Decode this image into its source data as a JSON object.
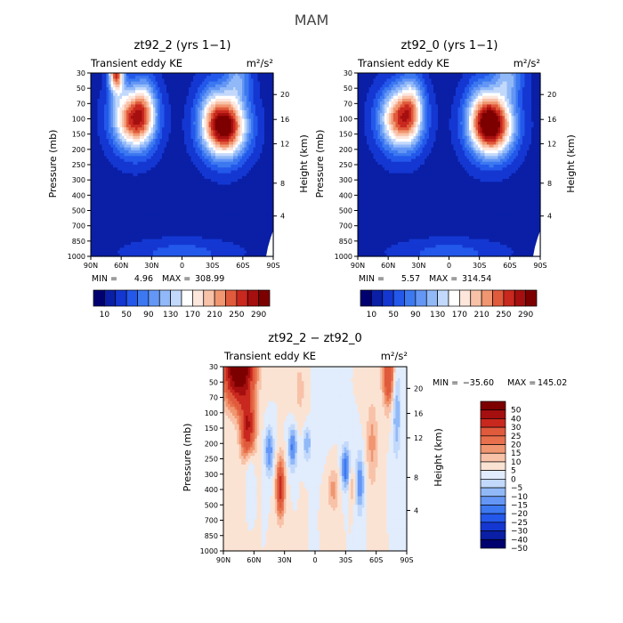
{
  "figure": {
    "title": "MAM"
  },
  "chart_data": [
    {
      "type": "heatmap",
      "title": "zt92_2 (yrs 1−1)",
      "subtitle": "Transient eddy KE",
      "units": "m²/s²",
      "ylabel": "Pressure (mb)",
      "y2label": "Height (km)",
      "x_ticks": [
        "90N",
        "60N",
        "30N",
        "0",
        "30S",
        "60S",
        "90S"
      ],
      "y_ticks": [
        "30",
        "50",
        "70",
        "100",
        "150",
        "200",
        "250",
        "300",
        "400",
        "500",
        "700",
        "850",
        "1000"
      ],
      "y2_ticks": [
        "4",
        "8",
        "12",
        "16",
        "20"
      ],
      "min_label": "MIN =",
      "min": "4.96",
      "max_label": "MAX =",
      "max": "308.99",
      "colorbar_levels": [
        10,
        30,
        50,
        70,
        90,
        110,
        130,
        150,
        170,
        190,
        210,
        230,
        250,
        270,
        290
      ],
      "colorbar_labels": [
        "10",
        "50",
        "90",
        "130",
        "170",
        "210",
        "250",
        "290"
      ],
      "colors": [
        "#00006e",
        "#0a1fa6",
        "#1437d2",
        "#2358eb",
        "#3c78f0",
        "#6496f5",
        "#91b9f8",
        "#c3d9fb",
        "#ffffff",
        "#fde6dc",
        "#f8c2a8",
        "#f09670",
        "#e05a3c",
        "#c8281e",
        "#a50f0f",
        "#7d0000"
      ],
      "features": [
        {
          "lat": 65,
          "lev": 0,
          "amp": 230,
          "wlat": 5,
          "wlev": 0.9
        },
        {
          "lat": 48,
          "lev": 3.0,
          "amp": 235,
          "wlat": 14,
          "wlev": 1.4
        },
        {
          "lat": 36,
          "lev": 2.2,
          "amp": 70,
          "wlat": 8,
          "wlev": 1.5
        },
        {
          "lat": -42,
          "lev": 3.5,
          "amp": 290,
          "wlat": 15,
          "wlev": 1.4
        },
        {
          "lat": -28,
          "lev": 2.2,
          "amp": 40,
          "wlat": 10,
          "wlev": 1.6
        },
        {
          "lat": -55,
          "lev": 0.3,
          "amp": 80,
          "wlat": 9,
          "wlev": 1.0
        },
        {
          "lat": 0,
          "lev": 11.8,
          "amp": 40,
          "wlat": 35,
          "wlev": 0.6
        }
      ],
      "base": 22
    },
    {
      "type": "heatmap",
      "title": "zt92_0 (yrs 1−1)",
      "subtitle": "Transient eddy KE",
      "units": "m²/s²",
      "ylabel": "Pressure (mb)",
      "y2label": "Height (km)",
      "x_ticks": [
        "90N",
        "60N",
        "30N",
        "0",
        "30S",
        "60S",
        "90S"
      ],
      "y_ticks": [
        "30",
        "50",
        "70",
        "100",
        "150",
        "200",
        "250",
        "300",
        "400",
        "500",
        "700",
        "850",
        "1000"
      ],
      "y2_ticks": [
        "4",
        "8",
        "12",
        "16",
        "20"
      ],
      "min_label": "MIN =",
      "min": "5.57",
      "max_label": "MAX =",
      "max": "314.54",
      "colorbar_levels": [
        10,
        30,
        50,
        70,
        90,
        110,
        130,
        150,
        170,
        190,
        210,
        230,
        250,
        270,
        290
      ],
      "colorbar_labels": [
        "10",
        "50",
        "90",
        "130",
        "170",
        "210",
        "250",
        "290"
      ],
      "colors": [
        "#00006e",
        "#0a1fa6",
        "#1437d2",
        "#2358eb",
        "#3c78f0",
        "#6496f5",
        "#91b9f8",
        "#c3d9fb",
        "#ffffff",
        "#fde6dc",
        "#f8c2a8",
        "#f09670",
        "#e05a3c",
        "#c8281e",
        "#a50f0f",
        "#7d0000"
      ],
      "features": [
        {
          "lat": 48,
          "lev": 3.0,
          "amp": 225,
          "wlat": 14,
          "wlev": 1.4
        },
        {
          "lat": 36,
          "lev": 2.0,
          "amp": 80,
          "wlat": 8,
          "wlev": 1.5
        },
        {
          "lat": -42,
          "lev": 3.4,
          "amp": 300,
          "wlat": 15,
          "wlev": 1.4
        },
        {
          "lat": -30,
          "lev": 2.2,
          "amp": 45,
          "wlat": 10,
          "wlev": 1.6
        },
        {
          "lat": -58,
          "lev": 0.2,
          "amp": 90,
          "wlat": 10,
          "wlev": 1.0
        },
        {
          "lat": 0,
          "lev": 11.8,
          "amp": 40,
          "wlat": 35,
          "wlev": 0.6
        }
      ],
      "base": 22
    },
    {
      "type": "heatmap",
      "title": "zt92_2 − zt92_0",
      "subtitle": "Transient eddy KE",
      "units": "m²/s²",
      "ylabel": "Pressure (mb)",
      "y2label": "Height (km)",
      "x_ticks": [
        "90N",
        "60N",
        "30N",
        "0",
        "30S",
        "60S",
        "90S"
      ],
      "y_ticks": [
        "30",
        "50",
        "70",
        "100",
        "150",
        "200",
        "250",
        "300",
        "400",
        "500",
        "700",
        "850",
        "1000"
      ],
      "y2_ticks": [
        "4",
        "8",
        "12",
        "16",
        "20"
      ],
      "min_label": "MIN =",
      "min": "−35.60",
      "max_label": "MAX =",
      "max": "145.02",
      "colorbar_levels": [
        -50,
        -40,
        -30,
        -25,
        -20,
        -15,
        -10,
        -5,
        0,
        5,
        10,
        15,
        20,
        30,
        40,
        50
      ],
      "colorbar_labels": [
        "50",
        "40",
        "30",
        "25",
        "20",
        "15",
        "10",
        "5",
        "0",
        "−5",
        "−10",
        "−15",
        "−20",
        "−25",
        "−30",
        "−40",
        "−50"
      ],
      "colors": [
        "#00006e",
        "#0a1fa6",
        "#1437d2",
        "#2358eb",
        "#3c78f0",
        "#6496f5",
        "#91b9f8",
        "#c3d9fb",
        "#e1ecfc",
        "#fbe3d3",
        "#f8c2a8",
        "#f09670",
        "#e8704c",
        "#e05a3c",
        "#c8281e",
        "#a50f0f",
        "#7d0000"
      ],
      "features": [
        {
          "lat": 75,
          "lev": 0,
          "amp": 70,
          "wlat": 10,
          "wlev": 1.6
        },
        {
          "lat": 66,
          "lev": 4.0,
          "amp": 40,
          "wlat": 5,
          "wlev": 1.4
        },
        {
          "lat": 64,
          "lev": 6.2,
          "amp": -10,
          "wlat": 3,
          "wlev": 1.0
        },
        {
          "lat": 45,
          "lev": 5.5,
          "amp": -20,
          "wlat": 3,
          "wlev": 1.1
        },
        {
          "lat": 34,
          "lev": 7.9,
          "amp": 35,
          "wlat": 3,
          "wlev": 1.3
        },
        {
          "lat": 22,
          "lev": 5.2,
          "amp": -22,
          "wlat": 3,
          "wlev": 1.0
        },
        {
          "lat": 8,
          "lev": 5.0,
          "amp": -15,
          "wlat": 3,
          "wlev": 0.8
        },
        {
          "lat": -18,
          "lev": 8.0,
          "amp": 12,
          "wlat": 4,
          "wlev": 1.0
        },
        {
          "lat": -30,
          "lev": 6.6,
          "amp": -25,
          "wlat": 3,
          "wlev": 1.0
        },
        {
          "lat": -36,
          "lev": 7.8,
          "amp": 10,
          "wlat": 2.5,
          "wlev": 0.8
        },
        {
          "lat": -44,
          "lev": 7.6,
          "amp": -20,
          "wlat": 3,
          "wlev": 1.3
        },
        {
          "lat": -56,
          "lev": 5.0,
          "amp": 12,
          "wlat": 4,
          "wlev": 2.0
        },
        {
          "lat": -72,
          "lev": 0.5,
          "amp": 30,
          "wlat": 4,
          "wlev": 1.5
        },
        {
          "lat": -80,
          "lev": 3.0,
          "amp": -15,
          "wlat": 3,
          "wlev": 2.0
        },
        {
          "lat": 15,
          "lev": 1.5,
          "amp": 6,
          "wlat": 6,
          "wlev": 2.0
        },
        {
          "lat": -5,
          "lev": 2.0,
          "amp": -5,
          "wlat": 6,
          "wlev": 2.0
        }
      ],
      "base": 0
    }
  ]
}
